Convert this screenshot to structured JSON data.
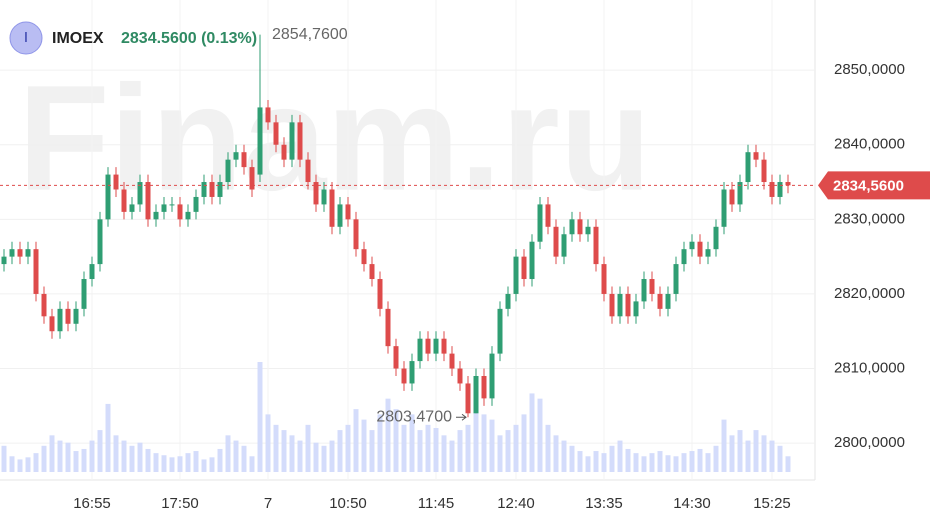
{
  "chart_data": {
    "type": "candlestick",
    "watermark": "Finam.ru",
    "badge": "I",
    "ticker": "IMOEX",
    "quote": "2834.5600 (0.13%)",
    "last_price_label": "2834,5600",
    "up_color": "#2f9e73",
    "down_color": "#de4b4b",
    "volume_color": "#d4dcfb",
    "grid": true,
    "ylim": [
      2796.4,
      2859.4
    ],
    "yticks": [
      {
        "value": 2800,
        "label": "2800,0000"
      },
      {
        "value": 2810,
        "label": "2810,0000"
      },
      {
        "value": 2820,
        "label": "2820,0000"
      },
      {
        "value": 2830,
        "label": "2830,0000"
      },
      {
        "value": 2840,
        "label": "2840,0000"
      },
      {
        "value": 2850,
        "label": "2850,0000"
      }
    ],
    "xticks": [
      {
        "value": 11,
        "label": "16:55"
      },
      {
        "value": 22,
        "label": "17:50"
      },
      {
        "value": 33,
        "label": "7"
      },
      {
        "value": 43,
        "label": "10:50"
      },
      {
        "value": 54,
        "label": "11:45"
      },
      {
        "value": 64,
        "label": "12:40"
      },
      {
        "value": 75,
        "label": "13:35"
      },
      {
        "value": 86,
        "label": "14:30"
      },
      {
        "value": 96,
        "label": "15:25"
      }
    ],
    "annotations": [
      {
        "text": "2854,7600",
        "index": 32
      },
      {
        "text": "2803,4700",
        "index": 58
      }
    ],
    "open": [
      2824,
      2825,
      2826,
      2825,
      2826,
      2820,
      2817,
      2815,
      2818,
      2816,
      2818,
      2822,
      2824,
      2830,
      2836,
      2834,
      2831,
      2832,
      2835,
      2830,
      2831,
      2832,
      2832,
      2830,
      2831,
      2833,
      2835,
      2833,
      2835,
      2838,
      2839,
      2837,
      2836,
      2845,
      2843,
      2840,
      2838,
      2843,
      2838,
      2835,
      2832,
      2834,
      2829,
      2832,
      2830,
      2826,
      2824,
      2822,
      2818,
      2813,
      2810,
      2808,
      2811,
      2814,
      2812,
      2814,
      2812,
      2810,
      2808,
      2804,
      2809,
      2806,
      2812,
      2818,
      2820,
      2825,
      2822,
      2827,
      2832,
      2829,
      2825,
      2828,
      2830,
      2828,
      2829,
      2824,
      2820,
      2817,
      2820,
      2817,
      2819,
      2822,
      2820,
      2818,
      2820,
      2824,
      2826,
      2827,
      2825,
      2826,
      2829,
      2834,
      2832,
      2835,
      2839,
      2838,
      2835,
      2833,
      2835
    ],
    "high": [
      2826,
      2827,
      2827,
      2827,
      2827,
      2821,
      2818,
      2819,
      2819,
      2819,
      2823,
      2825,
      2831,
      2837,
      2837,
      2835,
      2833,
      2836,
      2836,
      2832,
      2833,
      2833,
      2833,
      2832,
      2834,
      2836,
      2836,
      2836,
      2839,
      2840,
      2840,
      2838,
      2854.76,
      2846,
      2844,
      2841,
      2844,
      2844,
      2839,
      2836,
      2835,
      2835,
      2833,
      2833,
      2831,
      2827,
      2825,
      2823,
      2819,
      2814,
      2811,
      2812,
      2815,
      2815,
      2815,
      2815,
      2813,
      2811,
      2809,
      2810,
      2810,
      2813,
      2819,
      2821,
      2826,
      2826,
      2828,
      2833,
      2833,
      2830,
      2829,
      2831,
      2831,
      2830,
      2830,
      2825,
      2821,
      2821,
      2821,
      2820,
      2823,
      2823,
      2821,
      2821,
      2825,
      2827,
      2828,
      2828,
      2827,
      2830,
      2835,
      2835,
      2836,
      2840,
      2840,
      2839,
      2836,
      2836,
      2836
    ],
    "low": [
      2823,
      2824,
      2824,
      2824,
      2819,
      2816,
      2814,
      2814,
      2815,
      2815,
      2817,
      2821,
      2823,
      2829,
      2833,
      2830,
      2830,
      2831,
      2829,
      2829,
      2830,
      2831,
      2829,
      2829,
      2830,
      2832,
      2832,
      2832,
      2834,
      2837,
      2836,
      2833,
      2835,
      2842,
      2839,
      2837,
      2837,
      2837,
      2834,
      2831,
      2831,
      2828,
      2828,
      2829,
      2825,
      2823,
      2821,
      2817,
      2812,
      2809,
      2807,
      2807,
      2810,
      2811,
      2811,
      2811,
      2809,
      2807,
      2803.47,
      2804,
      2805,
      2805,
      2811,
      2817,
      2819,
      2821,
      2821,
      2826,
      2828,
      2824,
      2824,
      2827,
      2827,
      2827,
      2823,
      2819,
      2816,
      2816,
      2816,
      2816,
      2818,
      2819,
      2817,
      2817,
      2819,
      2823,
      2825,
      2824,
      2824,
      2825,
      2828,
      2831,
      2831,
      2834,
      2837,
      2834,
      2832,
      2832,
      2833.5
    ],
    "close": [
      2825,
      2826,
      2825,
      2826,
      2820,
      2817,
      2815,
      2818,
      2816,
      2818,
      2822,
      2824,
      2830,
      2836,
      2834,
      2831,
      2832,
      2835,
      2830,
      2831,
      2832,
      2832,
      2830,
      2831,
      2833,
      2835,
      2833,
      2835,
      2838,
      2839,
      2837,
      2834,
      2845,
      2843,
      2840,
      2838,
      2843,
      2838,
      2835,
      2832,
      2834,
      2829,
      2832,
      2830,
      2826,
      2824,
      2822,
      2818,
      2813,
      2810,
      2808,
      2811,
      2814,
      2812,
      2814,
      2812,
      2810,
      2808,
      2804,
      2809,
      2806,
      2812,
      2818,
      2820,
      2825,
      2822,
      2827,
      2832,
      2829,
      2825,
      2828,
      2830,
      2828,
      2829,
      2824,
      2820,
      2817,
      2820,
      2817,
      2819,
      2822,
      2820,
      2818,
      2820,
      2824,
      2826,
      2827,
      2825,
      2826,
      2829,
      2834,
      2832,
      2835,
      2839,
      2838,
      2835,
      2833,
      2835,
      2834.56
    ],
    "volume": [
      25,
      15,
      12,
      14,
      18,
      25,
      35,
      30,
      28,
      20,
      22,
      30,
      40,
      65,
      35,
      30,
      25,
      28,
      22,
      18,
      16,
      14,
      15,
      18,
      20,
      12,
      14,
      22,
      35,
      30,
      25,
      15,
      105,
      55,
      45,
      40,
      35,
      30,
      45,
      28,
      25,
      30,
      40,
      45,
      60,
      50,
      40,
      55,
      70,
      60,
      45,
      55,
      40,
      45,
      42,
      35,
      30,
      40,
      45,
      60,
      55,
      50,
      35,
      40,
      45,
      55,
      75,
      70,
      45,
      35,
      30,
      25,
      20,
      15,
      20,
      18,
      25,
      30,
      22,
      18,
      15,
      18,
      20,
      16,
      15,
      18,
      20,
      22,
      18,
      25,
      50,
      35,
      40,
      30,
      40,
      35,
      30,
      25,
      15
    ]
  }
}
